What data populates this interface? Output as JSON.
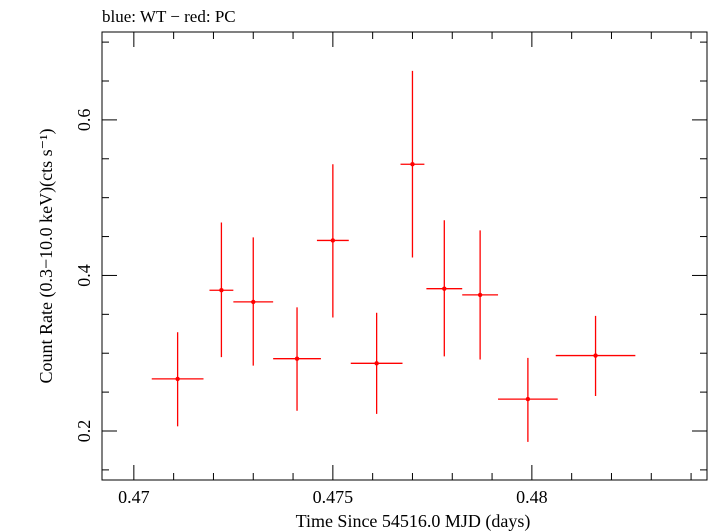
{
  "chart_data": {
    "type": "scatter",
    "title": "blue: WT − red: PC",
    "xlabel": "Time Since 54516.0 MJD (days)",
    "ylabel": "Count Rate (0.3−10.0 keV)(cts s⁻¹)",
    "xlim": [
      0.4692,
      0.4844
    ],
    "ylim": [
      0.137,
      0.713
    ],
    "xticks": [
      0.47,
      0.475,
      0.48
    ],
    "xtick_labels": [
      "0.47",
      "0.475",
      "0.48"
    ],
    "yticks": [
      0.2,
      0.4,
      0.6
    ],
    "ytick_labels": [
      "0.2",
      "0.4",
      "0.6"
    ],
    "grid": false,
    "series": [
      {
        "name": "PC",
        "color": "#ff0000",
        "points": [
          {
            "x": 0.4711,
            "y": 0.267,
            "xerr": 0.00065,
            "ylo": 0.206,
            "yhi": 0.327
          },
          {
            "x": 0.4722,
            "y": 0.381,
            "xerr": 0.0003,
            "ylo": 0.295,
            "yhi": 0.468
          },
          {
            "x": 0.473,
            "y": 0.366,
            "xerr": 0.0005,
            "ylo": 0.284,
            "yhi": 0.449
          },
          {
            "x": 0.4741,
            "y": 0.293,
            "xerr": 0.0006,
            "ylo": 0.226,
            "yhi": 0.359
          },
          {
            "x": 0.475,
            "y": 0.445,
            "xerr": 0.0004,
            "ylo": 0.346,
            "yhi": 0.543
          },
          {
            "x": 0.4761,
            "y": 0.287,
            "xerr": 0.00065,
            "ylo": 0.222,
            "yhi": 0.352
          },
          {
            "x": 0.477,
            "y": 0.543,
            "xerr": 0.0003,
            "ylo": 0.423,
            "yhi": 0.663
          },
          {
            "x": 0.4778,
            "y": 0.383,
            "xerr": 0.00045,
            "ylo": 0.296,
            "yhi": 0.471
          },
          {
            "x": 0.4787,
            "y": 0.375,
            "xerr": 0.00045,
            "ylo": 0.292,
            "yhi": 0.458
          },
          {
            "x": 0.4799,
            "y": 0.241,
            "xerr": 0.00075,
            "ylo": 0.186,
            "yhi": 0.294
          },
          {
            "x": 0.4816,
            "y": 0.297,
            "xerr": 0.001,
            "ylo": 0.245,
            "yhi": 0.348
          }
        ]
      }
    ]
  }
}
